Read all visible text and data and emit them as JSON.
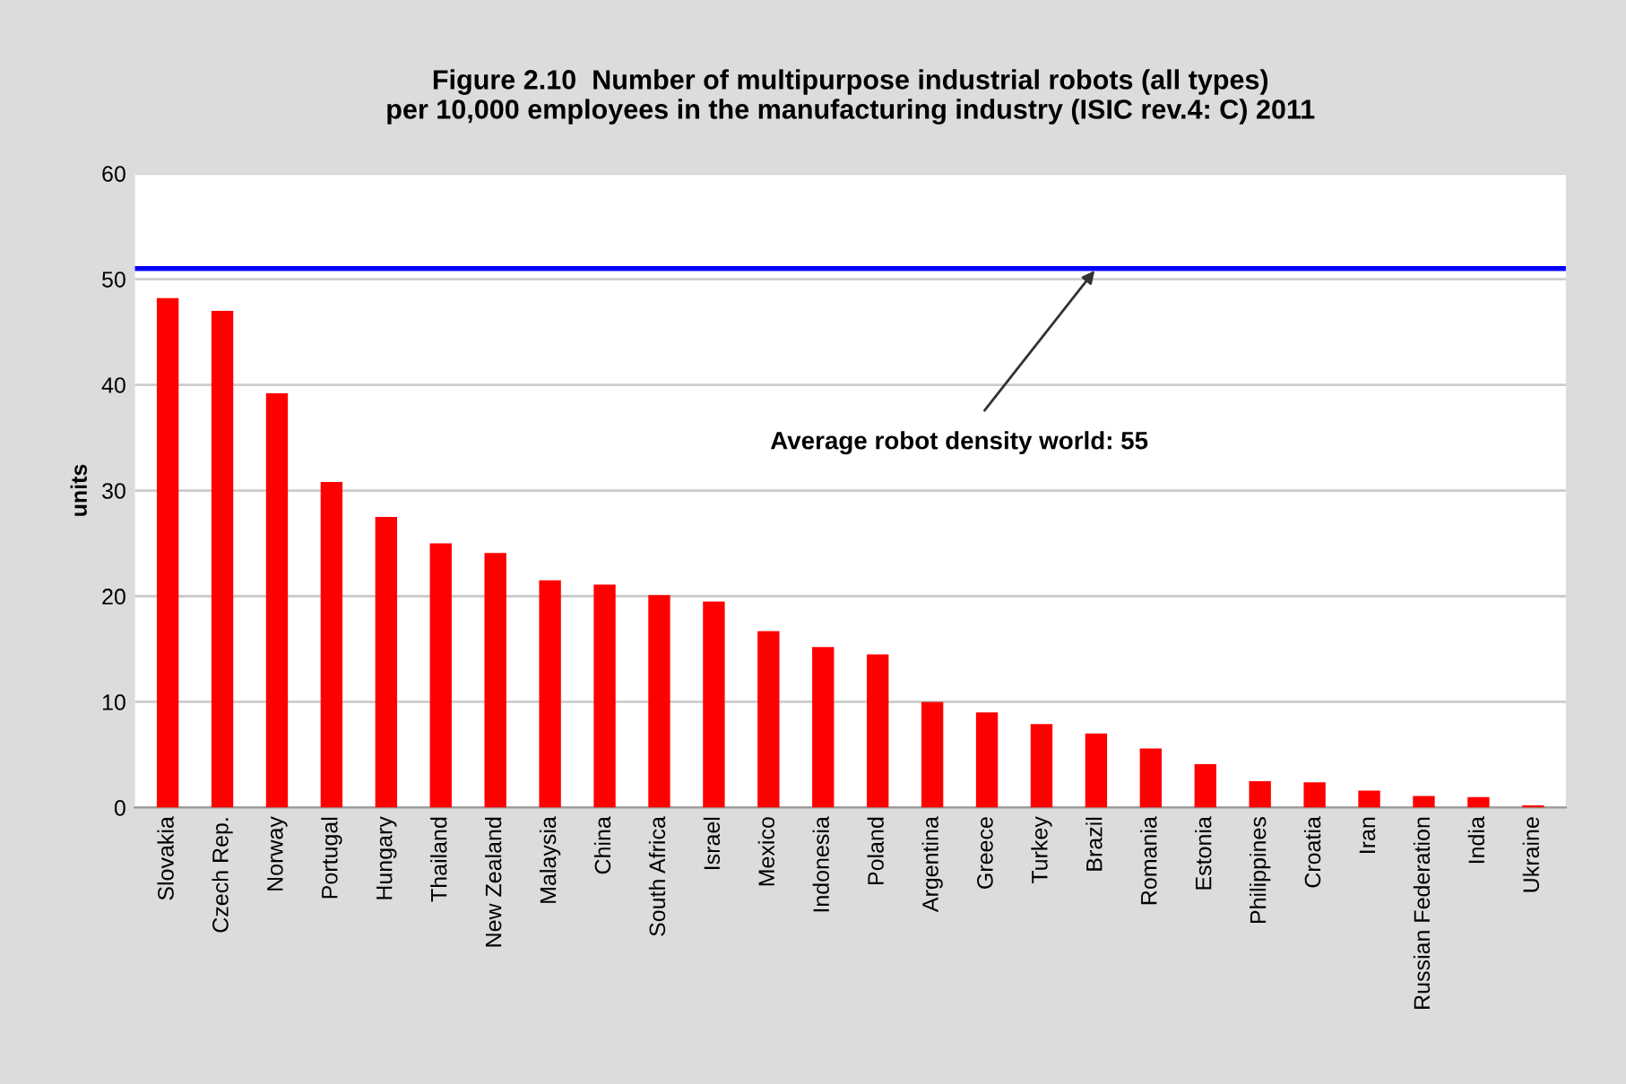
{
  "chart_data": {
    "type": "bar",
    "title": "Figure 2.10  Number of multipurpose industrial robots (all types)\nper 10,000 employees in the manufacturing industry (ISIC rev.4: C) 2011",
    "ylabel": "units",
    "categories": [
      "Slovakia",
      "Czech Rep.",
      "Norway",
      "Portugal",
      "Hungary",
      "Thailand",
      "New Zealand",
      "Malaysia",
      "China",
      "South Africa",
      "Israel",
      "Mexico",
      "Indonesia",
      "Poland",
      "Argentina",
      "Greece",
      "Turkey",
      "Brazil",
      "Romania",
      "Estonia",
      "Philippines",
      "Croatia",
      "Iran",
      "Russian Federation",
      "India",
      "Ukraine"
    ],
    "values": [
      48.2,
      47,
      39.2,
      30.8,
      27.5,
      25,
      24.1,
      21.5,
      21.1,
      20.1,
      19.5,
      16.7,
      15.2,
      14.5,
      10,
      9,
      7.9,
      7,
      5.6,
      4.1,
      2.5,
      2.4,
      1.6,
      1.1,
      1.0,
      0.2
    ],
    "color": "#ff0000",
    "ylim": [
      0,
      60
    ],
    "yticks": [
      0,
      10,
      20,
      30,
      40,
      50,
      60
    ],
    "grid": "y",
    "ref_lines": [
      {
        "axis": "y",
        "value": 51,
        "label": null,
        "color": "#0000ff"
      }
    ],
    "annotations": [
      {
        "text": "Average robot density world: 55",
        "x": "Brazil",
        "y": 51
      }
    ]
  }
}
